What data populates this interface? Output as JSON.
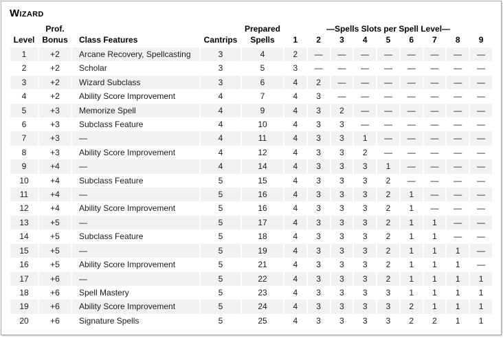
{
  "title": "Wizard",
  "colors": {
    "row_shade": "#f2f2f2",
    "border": "#a8a8a8",
    "text": "#1a1a1a",
    "heading": "#000000"
  },
  "table": {
    "header": {
      "level": "Level",
      "prof_top": "Prof.",
      "prof_bottom": "Bonus",
      "class_features": "Class Features",
      "cantrips": "Cantrips",
      "prepared_top": "Prepared",
      "prepared_bottom": "Spells",
      "spell_slots_span": "—Spells Slots per Spell Level—",
      "slot_levels": [
        "1",
        "2",
        "3",
        "4",
        "5",
        "6",
        "7",
        "8",
        "9"
      ]
    },
    "rows": [
      {
        "level": "1",
        "bonus": "+2",
        "features": "Arcane Recovery, Spellcasting",
        "cantrips": "3",
        "prepared": "4",
        "slots": [
          "2",
          "—",
          "—",
          "—",
          "—",
          "—",
          "—",
          "—",
          "—"
        ]
      },
      {
        "level": "2",
        "bonus": "+2",
        "features": "Scholar",
        "cantrips": "3",
        "prepared": "5",
        "slots": [
          "3",
          "—",
          "—",
          "—",
          "—",
          "—",
          "—",
          "—",
          "—"
        ]
      },
      {
        "level": "3",
        "bonus": "+2",
        "features": "Wizard Subclass",
        "cantrips": "3",
        "prepared": "6",
        "slots": [
          "4",
          "2",
          "—",
          "—",
          "—",
          "—",
          "—",
          "—",
          "—"
        ]
      },
      {
        "level": "4",
        "bonus": "+2",
        "features": "Ability Score Improvement",
        "cantrips": "4",
        "prepared": "7",
        "slots": [
          "4",
          "3",
          "—",
          "—",
          "—",
          "—",
          "—",
          "—",
          "—"
        ]
      },
      {
        "level": "5",
        "bonus": "+3",
        "features": "Memorize Spell",
        "cantrips": "4",
        "prepared": "9",
        "slots": [
          "4",
          "3",
          "2",
          "—",
          "—",
          "—",
          "—",
          "—",
          "—"
        ]
      },
      {
        "level": "6",
        "bonus": "+3",
        "features": "Subclass Feature",
        "cantrips": "4",
        "prepared": "10",
        "slots": [
          "4",
          "3",
          "3",
          "—",
          "—",
          "—",
          "—",
          "—",
          "—"
        ]
      },
      {
        "level": "7",
        "bonus": "+3",
        "features": "—",
        "cantrips": "4",
        "prepared": "11",
        "slots": [
          "4",
          "3",
          "3",
          "1",
          "—",
          "—",
          "—",
          "—",
          "—"
        ]
      },
      {
        "level": "8",
        "bonus": "+3",
        "features": "Ability Score Improvement",
        "cantrips": "4",
        "prepared": "12",
        "slots": [
          "4",
          "3",
          "3",
          "2",
          "—",
          "—",
          "—",
          "—",
          "—"
        ]
      },
      {
        "level": "9",
        "bonus": "+4",
        "features": "—",
        "cantrips": "4",
        "prepared": "14",
        "slots": [
          "4",
          "3",
          "3",
          "3",
          "1",
          "—",
          "—",
          "—",
          "—"
        ]
      },
      {
        "level": "10",
        "bonus": "+4",
        "features": "Subclass Feature",
        "cantrips": "5",
        "prepared": "15",
        "slots": [
          "4",
          "3",
          "3",
          "3",
          "2",
          "—",
          "—",
          "—",
          "—"
        ]
      },
      {
        "level": "11",
        "bonus": "+4",
        "features": "—",
        "cantrips": "5",
        "prepared": "16",
        "slots": [
          "4",
          "3",
          "3",
          "3",
          "2",
          "1",
          "—",
          "—",
          "—"
        ]
      },
      {
        "level": "12",
        "bonus": "+4",
        "features": "Ability Score Improvement",
        "cantrips": "5",
        "prepared": "16",
        "slots": [
          "4",
          "3",
          "3",
          "3",
          "2",
          "1",
          "—",
          "—",
          "—"
        ]
      },
      {
        "level": "13",
        "bonus": "+5",
        "features": "—",
        "cantrips": "5",
        "prepared": "17",
        "slots": [
          "4",
          "3",
          "3",
          "3",
          "2",
          "1",
          "1",
          "—",
          "—"
        ]
      },
      {
        "level": "14",
        "bonus": "+5",
        "features": "Subclass Feature",
        "cantrips": "5",
        "prepared": "18",
        "slots": [
          "4",
          "3",
          "3",
          "3",
          "2",
          "1",
          "1",
          "—",
          "—"
        ]
      },
      {
        "level": "15",
        "bonus": "+5",
        "features": "—",
        "cantrips": "5",
        "prepared": "19",
        "slots": [
          "4",
          "3",
          "3",
          "3",
          "2",
          "1",
          "1",
          "1",
          "—"
        ]
      },
      {
        "level": "16",
        "bonus": "+5",
        "features": "Ability Score Improvement",
        "cantrips": "5",
        "prepared": "21",
        "slots": [
          "4",
          "3",
          "3",
          "3",
          "2",
          "1",
          "1",
          "1",
          "—"
        ]
      },
      {
        "level": "17",
        "bonus": "+6",
        "features": "—",
        "cantrips": "5",
        "prepared": "22",
        "slots": [
          "4",
          "3",
          "3",
          "3",
          "2",
          "1",
          "1",
          "1",
          "1"
        ]
      },
      {
        "level": "18",
        "bonus": "+6",
        "features": "Spell Mastery",
        "cantrips": "5",
        "prepared": "23",
        "slots": [
          "4",
          "3",
          "3",
          "3",
          "3",
          "1",
          "1",
          "1",
          "1"
        ]
      },
      {
        "level": "19",
        "bonus": "+6",
        "features": "Ability Score Improvement",
        "cantrips": "5",
        "prepared": "24",
        "slots": [
          "4",
          "3",
          "3",
          "3",
          "3",
          "2",
          "1",
          "1",
          "1"
        ]
      },
      {
        "level": "20",
        "bonus": "+6",
        "features": "Signature Spells",
        "cantrips": "5",
        "prepared": "25",
        "slots": [
          "4",
          "3",
          "3",
          "3",
          "3",
          "2",
          "2",
          "1",
          "1"
        ]
      }
    ]
  }
}
